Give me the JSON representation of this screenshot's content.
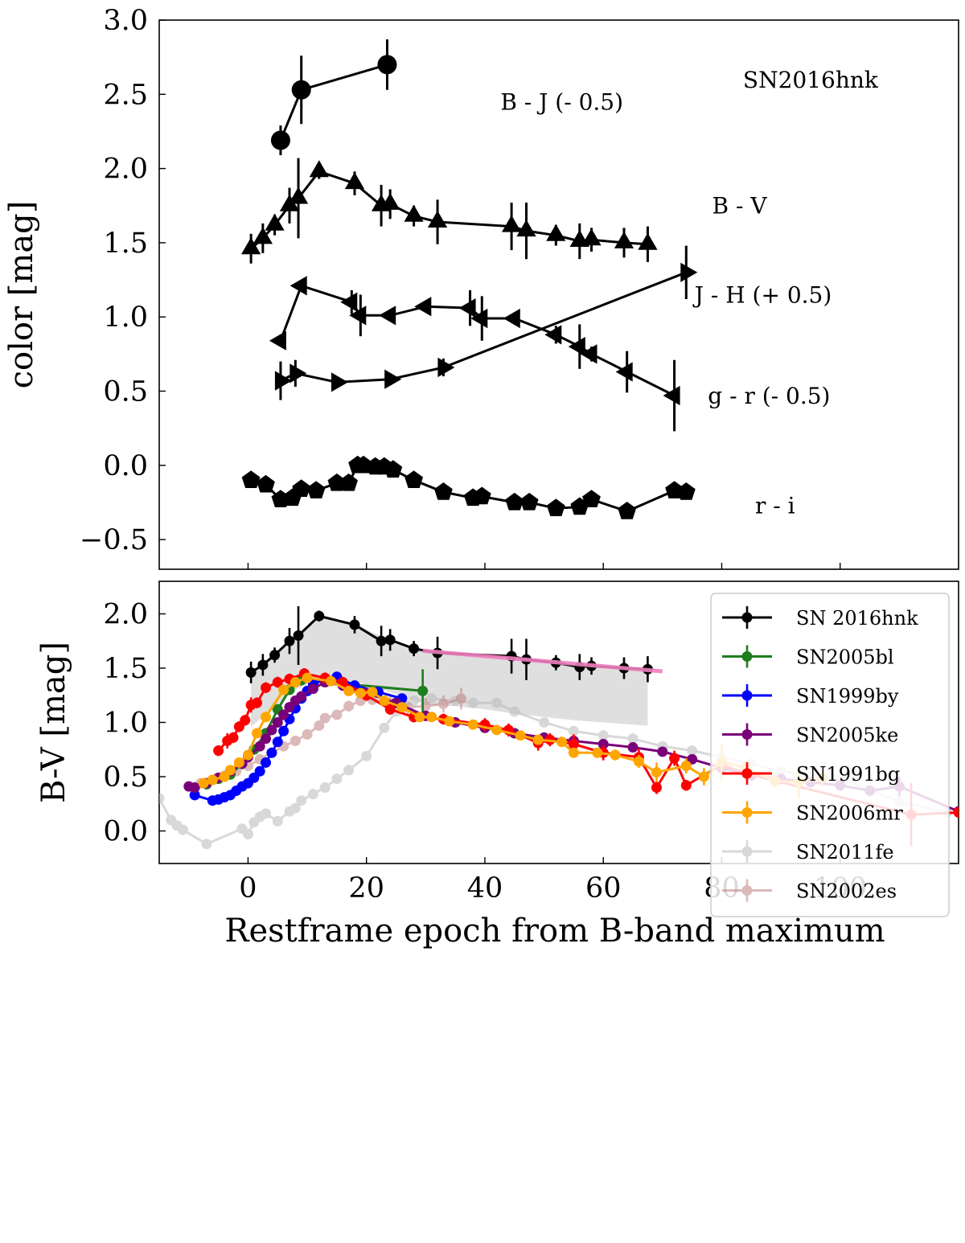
{
  "chart_data": [
    {
      "type": "scatter",
      "panel": "top",
      "title": "",
      "xlabel": "",
      "ylabel": "color [mag]",
      "xlim": [
        -15,
        120
      ],
      "ylim": [
        -0.7,
        3.0
      ],
      "xticks": [
        0,
        20,
        40,
        60,
        80,
        100
      ],
      "yticks": [
        -0.5,
        0.0,
        0.5,
        1.0,
        1.5,
        2.0,
        2.5,
        3.0
      ],
      "ytick_labels": [
        "−0.5",
        "0.0",
        "0.5",
        "1.0",
        "1.5",
        "2.0",
        "2.5",
        "3.0"
      ],
      "annotations": [
        {
          "text": "SN2016hnk",
          "x": 95,
          "y": 2.6
        },
        {
          "text": "B - J (- 0.5)",
          "x": 53,
          "y": 2.45
        },
        {
          "text": "B - V",
          "x": 83,
          "y": 1.75
        },
        {
          "text": "J - H (+ 0.5)",
          "x": 87,
          "y": 1.15
        },
        {
          "text": "g - r (- 0.5)",
          "x": 88,
          "y": 0.47
        },
        {
          "text": "r - i",
          "x": 89,
          "y": -0.27
        }
      ],
      "series": [
        {
          "name": "B - J",
          "marker": "circle",
          "x": [
            5.5,
            9,
            23.5
          ],
          "y": [
            2.19,
            2.53,
            2.7
          ],
          "err": [
            0.1,
            0.23,
            0.17
          ]
        },
        {
          "name": "B - V",
          "marker": "triangle-up",
          "x": [
            0.5,
            2.5,
            4.5,
            7,
            8.5,
            12,
            18,
            22.5,
            24,
            28,
            32,
            44.5,
            47,
            52,
            56,
            58,
            63.5,
            67.5
          ],
          "y": [
            1.46,
            1.53,
            1.62,
            1.75,
            1.8,
            1.98,
            1.9,
            1.75,
            1.76,
            1.68,
            1.64,
            1.61,
            1.58,
            1.55,
            1.51,
            1.52,
            1.5,
            1.49
          ],
          "err": [
            0.1,
            0.1,
            0.07,
            0.12,
            0.27,
            0.05,
            0.08,
            0.14,
            0.1,
            0.07,
            0.15,
            0.16,
            0.19,
            0.07,
            0.12,
            0.08,
            0.1,
            0.12
          ]
        },
        {
          "name": "J - H",
          "marker": "triangle-left",
          "x": [
            5.5,
            9,
            17.5,
            19,
            24,
            30,
            37.5,
            39.5,
            45,
            52,
            56,
            58,
            64,
            72
          ],
          "y": [
            0.84,
            1.21,
            1.1,
            1.01,
            1.01,
            1.07,
            1.06,
            0.99,
            0.99,
            0.88,
            0.8,
            0.75,
            0.63,
            0.47
          ],
          "err": [
            0.03,
            0.03,
            0.08,
            0.14,
            0.03,
            0.03,
            0.12,
            0.15,
            0.04,
            0.06,
            0.15,
            0.05,
            0.14,
            0.24
          ]
        },
        {
          "name": "g - r",
          "marker": "triangle-right",
          "x": [
            5.5,
            8,
            15,
            24,
            33,
            74
          ],
          "y": [
            0.57,
            0.62,
            0.56,
            0.58,
            0.66,
            1.3
          ],
          "err": [
            0.13,
            0.09,
            0.04,
            0.04,
            0.06,
            0.18
          ]
        },
        {
          "name": "r - i",
          "marker": "pentagon",
          "x": [
            0.5,
            3,
            5.5,
            7.5,
            9,
            11.5,
            15,
            17,
            18.5,
            19.5,
            21.5,
            23,
            24.5,
            28,
            33,
            38,
            39.5,
            45,
            47.5,
            52,
            56,
            58,
            64,
            72,
            74
          ],
          "y": [
            -0.1,
            -0.13,
            -0.23,
            -0.22,
            -0.16,
            -0.17,
            -0.12,
            -0.12,
            0.0,
            0.0,
            -0.01,
            -0.01,
            -0.03,
            -0.1,
            -0.18,
            -0.22,
            -0.21,
            -0.25,
            -0.25,
            -0.29,
            -0.28,
            -0.23,
            -0.31,
            -0.17,
            -0.18
          ]
        }
      ]
    },
    {
      "type": "line",
      "panel": "bottom",
      "title": "",
      "xlabel": "Restframe epoch from B-band maximum",
      "ylabel": "B-V [mag]",
      "xlim": [
        -15,
        120
      ],
      "ylim": [
        -0.3,
        2.3
      ],
      "xticks": [
        0,
        20,
        40,
        60,
        80,
        100
      ],
      "yticks": [
        0.0,
        0.5,
        1.0,
        1.5,
        2.0
      ],
      "ytick_labels": [
        "0.0",
        "0.5",
        "1.0",
        "1.5",
        "2.0"
      ],
      "legend": "top-right",
      "shaded_band": {
        "x": [
          0.5,
          8,
          12,
          18,
          24,
          28,
          30,
          35,
          40,
          45,
          50,
          55,
          60,
          65,
          67.5
        ],
        "upper": [
          1.46,
          1.8,
          1.98,
          1.9,
          1.76,
          1.68,
          1.66,
          1.64,
          1.63,
          1.6,
          1.57,
          1.53,
          1.51,
          1.5,
          1.48
        ],
        "lower": [
          0.96,
          1.3,
          1.4,
          1.38,
          1.28,
          1.2,
          1.16,
          1.15,
          1.12,
          1.08,
          1.05,
          1.02,
          1.0,
          0.98,
          0.97
        ]
      },
      "fit_line": {
        "x": [
          29.5,
          70
        ],
        "y": [
          1.66,
          1.47
        ]
      },
      "series": [
        {
          "name": "SN 2016hnk",
          "color": "#000000",
          "opacity": 1.0,
          "x": [
            0.5,
            2.5,
            4.5,
            7,
            8.5,
            12,
            18,
            22.5,
            24,
            28,
            32,
            44.5,
            47,
            52,
            56,
            58,
            63.5,
            67.5
          ],
          "y": [
            1.46,
            1.53,
            1.62,
            1.75,
            1.8,
            1.98,
            1.9,
            1.75,
            1.76,
            1.68,
            1.64,
            1.61,
            1.58,
            1.55,
            1.51,
            1.52,
            1.5,
            1.49
          ],
          "err": [
            0.1,
            0.1,
            0.07,
            0.12,
            0.27,
            0.05,
            0.08,
            0.14,
            0.1,
            0.07,
            0.15,
            0.16,
            0.19,
            0.07,
            0.12,
            0.08,
            0.1,
            0.12
          ]
        },
        {
          "name": "SN2005bl",
          "color": "#1e7d1e",
          "opacity": 1.0,
          "x": [
            -7,
            -5,
            -3,
            -1,
            1,
            3,
            5,
            7,
            9,
            29.5
          ],
          "y": [
            0.43,
            0.48,
            0.52,
            0.62,
            0.75,
            0.9,
            1.12,
            1.3,
            1.39,
            1.29
          ],
          "err": [
            0.02,
            0.02,
            0.02,
            0.05,
            0.03,
            0.02,
            0.03,
            0.03,
            0.05,
            0.2
          ]
        },
        {
          "name": "SN1999by",
          "color": "#0000ff",
          "opacity": 1.0,
          "x": [
            -9,
            -6,
            -5,
            -4,
            -3,
            -2,
            -1,
            0,
            1,
            2,
            3,
            4,
            5,
            6,
            7,
            8,
            9,
            10,
            11,
            13,
            15,
            18,
            22,
            26
          ],
          "y": [
            0.33,
            0.28,
            0.29,
            0.31,
            0.33,
            0.37,
            0.41,
            0.44,
            0.49,
            0.55,
            0.63,
            0.72,
            0.82,
            0.92,
            1.03,
            1.13,
            1.22,
            1.29,
            1.35,
            1.4,
            1.42,
            1.34,
            1.28,
            1.22
          ],
          "err": [
            0.02,
            0.02,
            0.02,
            0.02,
            0.02,
            0.02,
            0.02,
            0.02,
            0.02,
            0.02,
            0.02,
            0.02,
            0.02,
            0.02,
            0.02,
            0.02,
            0.02,
            0.02,
            0.02,
            0.02,
            0.03,
            0.03,
            0.04,
            0.04
          ]
        },
        {
          "name": "SN2005ke",
          "color": "#7a007a",
          "opacity": 1.0,
          "x": [
            -10,
            -9,
            -7,
            -5,
            -3,
            -1,
            0,
            2,
            3,
            4,
            5,
            6,
            7,
            8,
            9,
            11,
            13,
            16,
            20,
            25,
            30,
            35,
            40,
            45,
            50,
            55,
            60,
            65,
            70,
            75,
            80,
            85,
            90,
            95,
            100,
            105,
            110,
            120
          ],
          "y": [
            0.41,
            0.4,
            0.44,
            0.49,
            0.55,
            0.62,
            0.68,
            0.78,
            0.85,
            0.93,
            1.0,
            1.07,
            1.14,
            1.2,
            1.24,
            1.31,
            1.37,
            1.34,
            1.27,
            1.18,
            1.06,
            1.0,
            0.95,
            0.9,
            0.86,
            0.83,
            0.8,
            0.77,
            0.73,
            0.66,
            0.58,
            0.51,
            0.48,
            0.45,
            0.42,
            0.37,
            0.41,
            0.18
          ],
          "err": [
            0.02,
            0.02,
            0.02,
            0.02,
            0.02,
            0.02,
            0.02,
            0.02,
            0.02,
            0.02,
            0.02,
            0.02,
            0.02,
            0.02,
            0.02,
            0.02,
            0.02,
            0.02,
            0.02,
            0.03,
            0.03,
            0.03,
            0.03,
            0.03,
            0.03,
            0.03,
            0.03,
            0.03,
            0.04,
            0.04,
            0.04,
            0.04,
            0.05,
            0.05,
            0.05,
            0.04,
            0.09,
            0.03
          ]
        },
        {
          "name": "SN1991bg",
          "color": "#ff0000",
          "opacity": 1.0,
          "x": [
            -5,
            -3.5,
            -2.5,
            -1.5,
            -0.5,
            0.5,
            1.5,
            3,
            5,
            7,
            9.5,
            13,
            16,
            20,
            24,
            28,
            33,
            40,
            44,
            49,
            51,
            55,
            60,
            66,
            69,
            72,
            74,
            80,
            84,
            112,
            120
          ],
          "y": [
            0.74,
            0.83,
            0.86,
            0.96,
            1.02,
            1.16,
            1.18,
            1.32,
            1.37,
            1.4,
            1.45,
            1.41,
            1.37,
            1.25,
            1.12,
            1.05,
            1.03,
            0.98,
            0.93,
            0.81,
            0.84,
            0.8,
            0.72,
            0.68,
            0.4,
            0.67,
            0.42,
            0.61,
            0.53,
            0.15,
            0.17
          ],
          "err": [
            0.05,
            0.07,
            0.05,
            0.05,
            0.05,
            0.07,
            0.05,
            0.05,
            0.05,
            0.05,
            0.05,
            0.05,
            0.05,
            0.05,
            0.05,
            0.05,
            0.05,
            0.06,
            0.06,
            0.07,
            0.06,
            0.09,
            0.07,
            0.08,
            0.06,
            0.07,
            0.05,
            0.08,
            0.06,
            0.29,
            0.05
          ]
        },
        {
          "name": "SN2006mr",
          "color": "#ffa500",
          "opacity": 1.0,
          "x": [
            -7.5,
            -6,
            -4,
            -3,
            -1.5,
            0,
            1.5,
            3,
            6,
            8,
            10,
            14,
            17,
            19,
            21,
            23,
            26,
            29,
            31,
            34,
            38,
            42,
            46,
            49,
            53,
            55,
            59,
            62,
            66,
            69,
            74,
            77,
            80,
            84,
            89,
            93,
            97
          ],
          "y": [
            0.44,
            0.47,
            0.5,
            0.56,
            0.63,
            0.7,
            0.9,
            1.05,
            1.3,
            1.37,
            1.41,
            1.38,
            1.29,
            1.27,
            1.28,
            1.2,
            1.14,
            1.05,
            1.05,
            1.01,
            0.98,
            0.93,
            0.88,
            0.84,
            0.82,
            0.72,
            0.72,
            0.7,
            0.64,
            0.54,
            0.6,
            0.5,
            0.64,
            0.58,
            0.46,
            0.45,
            0.49
          ],
          "err": [
            0.02,
            0.02,
            0.02,
            0.02,
            0.02,
            0.02,
            0.02,
            0.02,
            0.02,
            0.02,
            0.02,
            0.02,
            0.02,
            0.02,
            0.02,
            0.02,
            0.03,
            0.03,
            0.03,
            0.03,
            0.04,
            0.04,
            0.04,
            0.04,
            0.04,
            0.04,
            0.04,
            0.05,
            0.06,
            0.09,
            0.07,
            0.08,
            0.17,
            0.06,
            0.06,
            0.15,
            0.08
          ]
        },
        {
          "name": "SN2011fe",
          "color": "#b9b9b9",
          "opacity": 0.55,
          "x": [
            -15,
            -13,
            -12,
            -11,
            -7,
            -1,
            0,
            1,
            2,
            3,
            5,
            7,
            8,
            9,
            11,
            13,
            15,
            17,
            20,
            23,
            25,
            28,
            31,
            35,
            38,
            42,
            45,
            50,
            55,
            60,
            65,
            70,
            75,
            80,
            85,
            90,
            100,
            105,
            110,
            118
          ],
          "y": [
            0.3,
            0.1,
            0.05,
            0.01,
            -0.12,
            0.02,
            -0.03,
            0.08,
            0.13,
            0.16,
            0.09,
            0.18,
            0.21,
            0.28,
            0.34,
            0.4,
            0.48,
            0.56,
            0.69,
            0.95,
            1.1,
            1.2,
            1.22,
            1.2,
            1.18,
            1.18,
            1.1,
            1.0,
            0.92,
            0.88,
            0.85,
            0.78,
            0.74,
            0.68,
            0.62,
            0.55,
            0.48,
            0.38,
            0.27,
            0.17
          ],
          "err": [
            0.03,
            0.03,
            0.03,
            0.03,
            0.04,
            0.03,
            0.03,
            0.03,
            0.03,
            0.03,
            0.03,
            0.03,
            0.03,
            0.03,
            0.03,
            0.03,
            0.03,
            0.03,
            0.03,
            0.03,
            0.03,
            0.03,
            0.03,
            0.03,
            0.03,
            0.03,
            0.03,
            0.03,
            0.03,
            0.03,
            0.03,
            0.03,
            0.03,
            0.03,
            0.03,
            0.03,
            0.03,
            0.03,
            0.03,
            0.03
          ]
        },
        {
          "name": "SN2002es",
          "color": "#c08080",
          "opacity": 0.55,
          "x": [
            -8,
            -6,
            -4,
            -2,
            0,
            2,
            4,
            6,
            8,
            10,
            12,
            13,
            15,
            17,
            19,
            21,
            24,
            27,
            30,
            33,
            36
          ],
          "y": [
            0.44,
            0.47,
            0.51,
            0.55,
            0.6,
            0.66,
            0.72,
            0.78,
            0.83,
            0.89,
            0.97,
            1.04,
            1.07,
            1.15,
            1.2,
            1.21,
            1.18,
            1.14,
            1.15,
            1.17,
            1.22
          ],
          "err": [
            0.03,
            0.03,
            0.03,
            0.03,
            0.03,
            0.03,
            0.03,
            0.03,
            0.03,
            0.04,
            0.04,
            0.04,
            0.04,
            0.05,
            0.05,
            0.05,
            0.06,
            0.06,
            0.07,
            0.08,
            0.1
          ]
        }
      ]
    }
  ]
}
